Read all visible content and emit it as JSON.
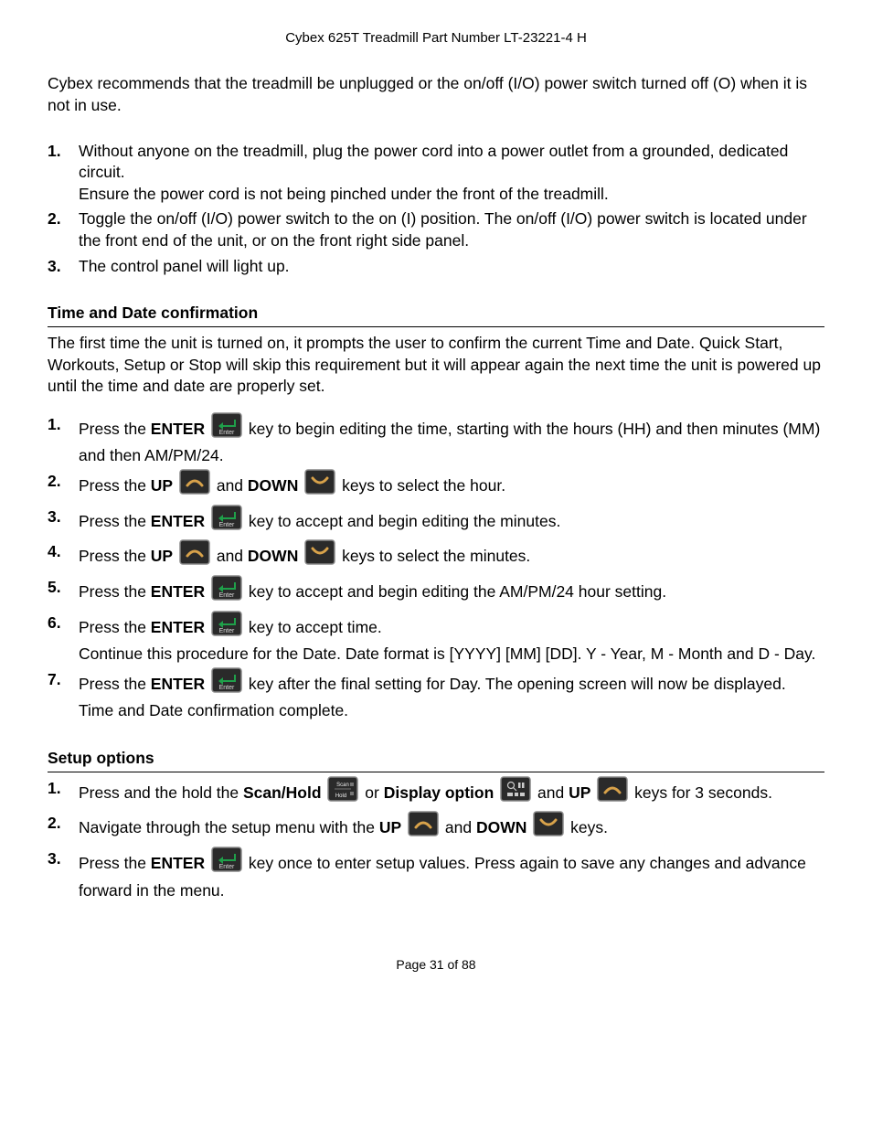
{
  "header": {
    "title": "Cybex 625T Treadmill Part Number LT-23221-4 H"
  },
  "intro": "Cybex recommends that the treadmill be unplugged or the on/off (I/O) power switch turned off (O) when it is not in use.",
  "steps_power": [
    {
      "num": "1.",
      "text": "Without anyone on the treadmill, plug the power cord into a power outlet from a grounded, dedicated circuit.",
      "text2": "Ensure the power cord is not being pinched under the front of the treadmill."
    },
    {
      "num": "2.",
      "text": "Toggle the on/off (I/O) power switch to the on (I) position. The on/off (I/O) power switch is located under the front end of the unit, or on the front right side panel."
    },
    {
      "num": "3.",
      "text": "The control panel will light up."
    }
  ],
  "section_time": {
    "title": "Time and Date confirmation",
    "intro": "The first time the unit is turned on, it prompts the user to confirm the current Time and Date. Quick Start, Workouts, Setup or Stop will skip this requirement but it will appear again the next time the unit is powered up until the time and date are properly set.",
    "steps": [
      {
        "num": "1.",
        "pre": "Press the ",
        "bold": "ENTER",
        "icon": "enter",
        "post": " key to begin editing the time, starting with the hours (HH) and then minutes (MM) and then AM/PM/24."
      },
      {
        "num": "2.",
        "pre": "Press the ",
        "bold": "UP",
        "icon": "up",
        "mid": " and ",
        "bold2": "DOWN",
        "icon2": "down",
        "post": " keys to select the hour."
      },
      {
        "num": "3.",
        "pre": "Press the ",
        "bold": "ENTER",
        "icon": "enter",
        "post": " key to accept and begin editing the minutes."
      },
      {
        "num": "4.",
        "pre": "Press the ",
        "bold": "UP",
        "icon": "up",
        "mid": " and ",
        "bold2": "DOWN",
        "icon2": "down",
        "post": " keys to select the minutes."
      },
      {
        "num": "5.",
        "pre": "Press the ",
        "bold": "ENTER",
        "icon": "enter",
        "post": " key to accept and begin editing the AM/PM/24 hour setting."
      },
      {
        "num": "6.",
        "pre": "Press the ",
        "bold": "ENTER",
        "icon": "enter",
        "post": " key to accept time.",
        "text2": "Continue this procedure for the Date. Date format is [YYYY] [MM] [DD]. Y - Year, M - Month and D - Day."
      },
      {
        "num": "7.",
        "pre": "Press the ",
        "bold": "ENTER",
        "icon": "enter",
        "post": " key after the final setting for Day. The opening screen will now be displayed. Time and Date confirmation complete."
      }
    ]
  },
  "section_setup": {
    "title": "Setup options",
    "steps": [
      {
        "num": "1.",
        "pre": "Press and the hold the ",
        "bold": "Scan/Hold",
        "icon": "scanhold",
        "mid": " or ",
        "bold2": "Display option",
        "icon2": "display",
        "mid2": " and ",
        "bold3": "UP",
        "icon3": "up",
        "post": " keys for 3 seconds."
      },
      {
        "num": "2.",
        "pre": "Navigate through the setup menu with the ",
        "bold": "UP",
        "icon": "up",
        "mid": " and ",
        "bold2": "DOWN",
        "icon2": "down",
        "post": " keys."
      },
      {
        "num": "3.",
        "pre": "Press the ",
        "bold": "ENTER",
        "icon": "enter",
        "post": " key once to enter setup values. Press again to save any changes and advance forward in the menu."
      }
    ]
  },
  "footer": "Page 31 of 88",
  "icons": {
    "enter": {
      "bg": "#2a2a2a",
      "border": "#888",
      "accent": "#1fa04a"
    },
    "up": {
      "bg": "#2a2a2a",
      "border": "#888",
      "accent": "#d8a24a"
    },
    "down": {
      "bg": "#2a2a2a",
      "border": "#888",
      "accent": "#d8a24a"
    },
    "scanhold": {
      "bg": "#2a2a2a",
      "border": "#888",
      "accent": "#cfd8dc"
    },
    "display": {
      "bg": "#2a2a2a",
      "border": "#888",
      "accent": "#cfd8dc"
    }
  }
}
